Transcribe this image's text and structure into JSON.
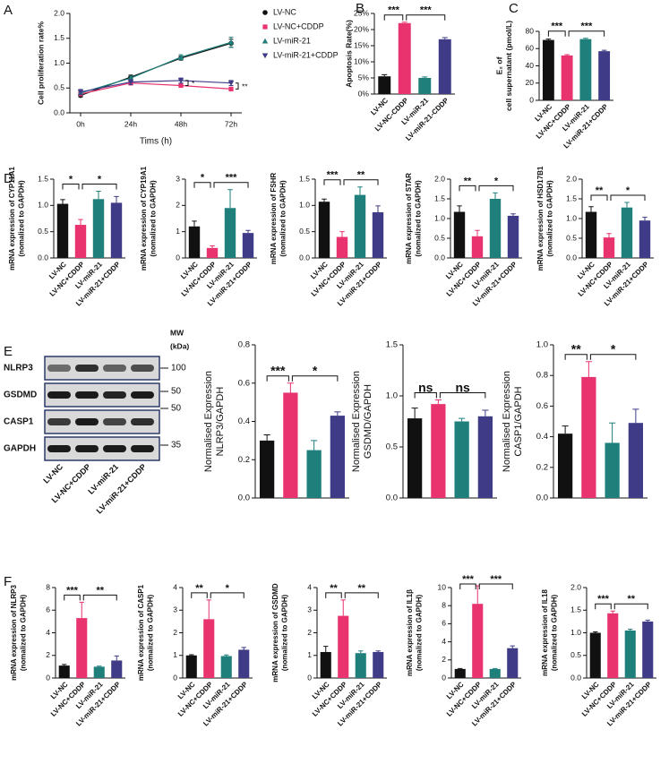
{
  "chart_data": [
    {
      "type": "line",
      "panel": "A",
      "ylabel": [
        "Cell proliferation rate%"
      ],
      "xlabel": "Tims (h)",
      "categories": [
        "0h",
        "24h",
        "48h",
        "72h"
      ],
      "ylim": [
        0,
        2
      ],
      "yticks": [
        {
          "value": 0,
          "label": "0.0"
        },
        {
          "value": 0.5,
          "label": "0.5"
        },
        {
          "value": 1,
          "label": "1.0"
        },
        {
          "value": 1.5,
          "label": "1.5"
        },
        {
          "value": 2,
          "label": "2.0"
        }
      ],
      "series": [
        {
          "name": "LV-NC",
          "color": "#111111",
          "marker": "o",
          "values": [
            0.35,
            0.72,
            1.1,
            1.4
          ],
          "errors": [
            0.03,
            0.04,
            0.04,
            0.08
          ]
        },
        {
          "name": "LV-NC+CDDP",
          "color": "#e8336e",
          "marker": "s",
          "values": [
            0.38,
            0.6,
            0.55,
            0.48
          ],
          "errors": [
            0.02,
            0.04,
            0.03,
            0.03
          ]
        },
        {
          "name": "LV-miR-21",
          "color": "#1f7f7b",
          "marker": "^",
          "values": [
            0.4,
            0.7,
            1.12,
            1.42
          ],
          "errors": [
            0.03,
            0.04,
            0.05,
            0.1
          ]
        },
        {
          "name": "LV-miR-21+CDDP",
          "color": "#3f3b86",
          "marker": "v",
          "values": [
            0.42,
            0.62,
            0.65,
            0.6
          ],
          "errors": [
            0.05,
            0.05,
            0.05,
            0.05
          ]
        }
      ],
      "annotations": [
        "*",
        "**"
      ]
    },
    {
      "type": "bar",
      "panel": "B",
      "ylabel": [
        "Apoptosis Rate(%)"
      ],
      "categories": [
        "LV-NC",
        "LV-NC-CDDP",
        "LV-miR-21",
        "LV-miR-21-CDDP"
      ],
      "ylim": [
        0,
        25
      ],
      "yticks": [
        {
          "value": 0,
          "label": "0%"
        },
        {
          "value": 5,
          "label": "5%"
        },
        {
          "value": 10,
          "label": "10%"
        },
        {
          "value": 15,
          "label": "15%"
        },
        {
          "value": 20,
          "label": "20%"
        },
        {
          "value": 25,
          "label": "25%"
        }
      ],
      "values": [
        5.5,
        22,
        5,
        17
      ],
      "errors": [
        0.5,
        0.3,
        0.3,
        0.5
      ],
      "colors": [
        "#111111",
        "#e8336e",
        "#1f7f7b",
        "#3f3b86"
      ],
      "significance": [
        "***",
        "***"
      ]
    },
    {
      "type": "bar",
      "panel": "C",
      "ylabel": [
        "E₂ of",
        "cell supernatant (pmol/L)"
      ],
      "categories": [
        "LV-NC",
        "LV-NC+CDDP",
        "LV-miR-21",
        "LV-miR-21+CDDP"
      ],
      "ylim": [
        0,
        80
      ],
      "yticks": [
        0,
        20,
        40,
        60,
        80
      ],
      "values": [
        70,
        52,
        71,
        57
      ],
      "errors": [
        1,
        1,
        1,
        1
      ],
      "colors": [
        "#111111",
        "#e8336e",
        "#1f7f7b",
        "#3f3b86"
      ],
      "significance": [
        "***",
        "***"
      ]
    },
    {
      "type": "bar",
      "panel": "D",
      "ylabel": [
        "mRNA expression of CYP11A1",
        "(nomalized to GAPDH)"
      ],
      "categories": [
        "LV-NC",
        "LV-NC+CDDP",
        "LV-miR-21",
        "LV-miR-21+CDDP"
      ],
      "ylim": [
        0,
        1.5
      ],
      "yticks": [
        {
          "value": 0,
          "label": "0.0"
        },
        {
          "value": 0.5,
          "label": "0.5"
        },
        {
          "value": 1,
          "label": "1.0"
        },
        {
          "value": 1.5,
          "label": "1.5"
        }
      ],
      "values": [
        1.03,
        0.63,
        1.12,
        1.05
      ],
      "errors": [
        0.08,
        0.1,
        0.15,
        0.12
      ],
      "colors": [
        "#111111",
        "#e8336e",
        "#1f7f7b",
        "#3f3b86"
      ],
      "significance": [
        "*",
        "*"
      ]
    },
    {
      "type": "bar",
      "ylabel": [
        "mRNA expression of CYP19A1",
        "(nomalized to GAPDH)"
      ],
      "categories": [
        "LV-NC",
        "LV-NC+CDDP",
        "LV-miR-21",
        "LV-miR-21+CDDP"
      ],
      "ylim": [
        0,
        3
      ],
      "yticks": [
        0,
        1,
        2,
        3
      ],
      "values": [
        1.2,
        0.38,
        1.9,
        0.95
      ],
      "errors": [
        0.2,
        0.08,
        0.7,
        0.1
      ],
      "colors": [
        "#111111",
        "#e8336e",
        "#1f7f7b",
        "#3f3b86"
      ],
      "significance": [
        "*",
        "***"
      ]
    },
    {
      "type": "bar",
      "ylabel": [
        "mRNA expression of FSHR",
        "(nomalized to GAPDH)"
      ],
      "categories": [
        "LV-NC",
        "LV-NC+CDDP",
        "LV-miR-21",
        "LV-miR-21+CDDP"
      ],
      "ylim": [
        0,
        1.5
      ],
      "yticks": [
        {
          "value": 0,
          "label": "0.0"
        },
        {
          "value": 0.5,
          "label": "0.5"
        },
        {
          "value": 1,
          "label": "1.0"
        },
        {
          "value": 1.5,
          "label": "1.5"
        }
      ],
      "values": [
        1.07,
        0.4,
        1.2,
        0.87
      ],
      "errors": [
        0.05,
        0.1,
        0.15,
        0.12
      ],
      "colors": [
        "#111111",
        "#e8336e",
        "#1f7f7b",
        "#3f3b86"
      ],
      "significance": [
        "***",
        "**"
      ]
    },
    {
      "type": "bar",
      "ylabel": [
        "mRNA expression of STAR",
        "(nomalized to GAPDH)"
      ],
      "categories": [
        "LV-NC",
        "LV-NC+CDDP",
        "LV-miR-21",
        "LV-miR-21+CDDP"
      ],
      "ylim": [
        0,
        2
      ],
      "yticks": [
        {
          "value": 0,
          "label": "0.0"
        },
        {
          "value": 0.5,
          "label": "0.5"
        },
        {
          "value": 1,
          "label": "1.0"
        },
        {
          "value": 1.5,
          "label": "1.5"
        },
        {
          "value": 2,
          "label": "2.0"
        }
      ],
      "values": [
        1.17,
        0.55,
        1.5,
        1.07
      ],
      "errors": [
        0.15,
        0.15,
        0.15,
        0.05
      ],
      "colors": [
        "#111111",
        "#e8336e",
        "#1f7f7b",
        "#3f3b86"
      ],
      "significance": [
        "**",
        "*"
      ]
    },
    {
      "type": "bar",
      "ylabel": [
        "mRNA expression of HSD17B1",
        "(nomalized to GAPDH)"
      ],
      "categories": [
        "LV-NC",
        "LV-NC+CDDP",
        "LV-miR-21",
        "LV-miR-21+CDDP"
      ],
      "ylim": [
        0,
        2
      ],
      "yticks": [
        {
          "value": 0,
          "label": "0.0"
        },
        {
          "value": 0.5,
          "label": "0.5"
        },
        {
          "value": 1,
          "label": "1.0"
        },
        {
          "value": 1.5,
          "label": "1.5"
        },
        {
          "value": 2,
          "label": "2.0"
        }
      ],
      "values": [
        1.17,
        0.52,
        1.28,
        0.95
      ],
      "errors": [
        0.13,
        0.1,
        0.13,
        0.08
      ],
      "colors": [
        "#111111",
        "#e8336e",
        "#1f7f7b",
        "#3f3b86"
      ],
      "significance": [
        "**",
        "*"
      ]
    },
    {
      "type": "bar",
      "ylabel": [
        "Normalised Expression",
        "NLRP3/GAPDH"
      ],
      "ylim": [
        0,
        0.8
      ],
      "yticks": [
        {
          "value": 0,
          "label": "0.0"
        },
        {
          "value": 0.2,
          "label": "0.2"
        },
        {
          "value": 0.4,
          "label": "0.4"
        },
        {
          "value": 0.6,
          "label": "0.6"
        },
        {
          "value": 0.8,
          "label": "0.8"
        }
      ],
      "values": [
        0.3,
        0.55,
        0.25,
        0.43
      ],
      "errors": [
        0.03,
        0.05,
        0.05,
        0.02
      ],
      "colors": [
        "#111111",
        "#e8336e",
        "#1f7f7b",
        "#3f3b86"
      ],
      "significance": [
        "***",
        "*"
      ]
    },
    {
      "type": "bar",
      "ylabel": [
        "Normalised Expression",
        "GSDMD/GAPDH"
      ],
      "ylim": [
        0,
        1.5
      ],
      "yticks": [
        {
          "value": 0,
          "label": "0.0"
        },
        {
          "value": 0.5,
          "label": "0.5"
        },
        {
          "value": 1,
          "label": "1.0"
        },
        {
          "value": 1.5,
          "label": "1.5"
        }
      ],
      "values": [
        0.78,
        0.92,
        0.75,
        0.8
      ],
      "errors": [
        0.1,
        0.04,
        0.03,
        0.06
      ],
      "colors": [
        "#111111",
        "#e8336e",
        "#1f7f7b",
        "#3f3b86"
      ],
      "significance": [
        "ns",
        "ns"
      ]
    },
    {
      "type": "bar",
      "ylabel": [
        "Normalised Expression",
        "CASP1/GAPDH"
      ],
      "ylim": [
        0,
        1
      ],
      "yticks": [
        {
          "value": 0,
          "label": "0.0"
        },
        {
          "value": 0.2,
          "label": "0.2"
        },
        {
          "value": 0.4,
          "label": "0.4"
        },
        {
          "value": 0.6,
          "label": "0.6"
        },
        {
          "value": 0.8,
          "label": "0.8"
        },
        {
          "value": 1,
          "label": "1.0"
        }
      ],
      "values": [
        0.42,
        0.79,
        0.36,
        0.49
      ],
      "errors": [
        0.05,
        0.1,
        0.13,
        0.09
      ],
      "colors": [
        "#111111",
        "#e8336e",
        "#1f7f7b",
        "#3f3b86"
      ],
      "significance": [
        "**",
        "*"
      ]
    },
    {
      "type": "bar",
      "panel": "F",
      "ylabel": [
        "mRNA expression of NLRP3",
        "(nomalized to GAPDH)"
      ],
      "categories": [
        "LV-NC",
        "LV-NC+CDDP",
        "LV-miR-21",
        "LV-miR-21+CDDP"
      ],
      "ylim": [
        0,
        8
      ],
      "yticks": [
        0,
        2,
        4,
        6,
        8
      ],
      "values": [
        1.1,
        5.3,
        1.0,
        1.55
      ],
      "errors": [
        0.1,
        1.4,
        0.05,
        0.4
      ],
      "colors": [
        "#111111",
        "#e8336e",
        "#1f7f7b",
        "#3f3b86"
      ],
      "significance": [
        "***",
        "**"
      ]
    },
    {
      "type": "bar",
      "ylabel": [
        "mRNA expression of CASP1",
        "(nomalized to GAPDH)"
      ],
      "categories": [
        "LV-NC",
        "LV-NC+CDDP",
        "LV-miR-21",
        "LV-miR-21+CDDP"
      ],
      "ylim": [
        0,
        4
      ],
      "yticks": [
        0,
        1,
        2,
        3,
        4
      ],
      "values": [
        1.0,
        2.6,
        0.97,
        1.25
      ],
      "errors": [
        0.03,
        0.85,
        0.05,
        0.1
      ],
      "colors": [
        "#111111",
        "#e8336e",
        "#1f7f7b",
        "#3f3b86"
      ],
      "significance": [
        "**",
        "*"
      ]
    },
    {
      "type": "bar",
      "ylabel": [
        "mRNA expression of GSDMD",
        "(nomalized to GAPDH)"
      ],
      "categories": [
        "LV-NC",
        "LV-NC+CDDP",
        "LV-miR-21",
        "LV-miR-21+CDDP"
      ],
      "ylim": [
        0,
        4
      ],
      "yticks": [
        0,
        1,
        2,
        3,
        4
      ],
      "values": [
        1.15,
        2.75,
        1.1,
        1.15
      ],
      "errors": [
        0.25,
        0.7,
        0.1,
        0.05
      ],
      "colors": [
        "#111111",
        "#e8336e",
        "#1f7f7b",
        "#3f3b86"
      ],
      "significance": [
        "**",
        "**"
      ]
    },
    {
      "type": "bar",
      "ylabel": [
        "mRNA expression of IL1β",
        "(nomalized to GAPDH)"
      ],
      "categories": [
        "LV-NC",
        "LV-NC+CDDP",
        "LV-miR-21",
        "LV-miR-21+CDDP"
      ],
      "ylim": [
        0,
        10
      ],
      "yticks": [
        0,
        2,
        4,
        6,
        8,
        10
      ],
      "values": [
        1.0,
        8.2,
        1.0,
        3.3
      ],
      "errors": [
        0.05,
        2.0,
        0.05,
        0.25
      ],
      "colors": [
        "#111111",
        "#e8336e",
        "#1f7f7b",
        "#3f3b86"
      ],
      "significance": [
        "***",
        "***"
      ]
    },
    {
      "type": "bar",
      "ylabel": [
        "mRNA expression of IL18",
        "(nomalized to GAPDH)"
      ],
      "categories": [
        "LV-NC",
        "LV-NC+CDDP",
        "LV-miR-21",
        "LV-miR-21+CDDP"
      ],
      "ylim": [
        0,
        2
      ],
      "yticks": [
        {
          "value": 0,
          "label": "0.0"
        },
        {
          "value": 0.5,
          "label": "0.5"
        },
        {
          "value": 1,
          "label": "1.0"
        },
        {
          "value": 1.5,
          "label": "1.5"
        },
        {
          "value": 2,
          "label": "2.0"
        }
      ],
      "values": [
        1.0,
        1.43,
        1.05,
        1.25
      ],
      "errors": [
        0.02,
        0.05,
        0.03,
        0.03
      ],
      "colors": [
        "#111111",
        "#e8336e",
        "#1f7f7b",
        "#3f3b86"
      ],
      "significance": [
        "***",
        "**"
      ]
    }
  ],
  "blot": {
    "panel": "E",
    "mw_header": [
      "MW",
      "(kDa)"
    ],
    "proteins": [
      "NLRP3",
      "GSDMD",
      "CASP1",
      "GAPDH"
    ],
    "mw": [
      100,
      50,
      50,
      35
    ],
    "categories": [
      "LV-NC",
      "LV-NC+CDDP",
      "LV-miR-21",
      "LV-miR-21+CDDP"
    ]
  }
}
